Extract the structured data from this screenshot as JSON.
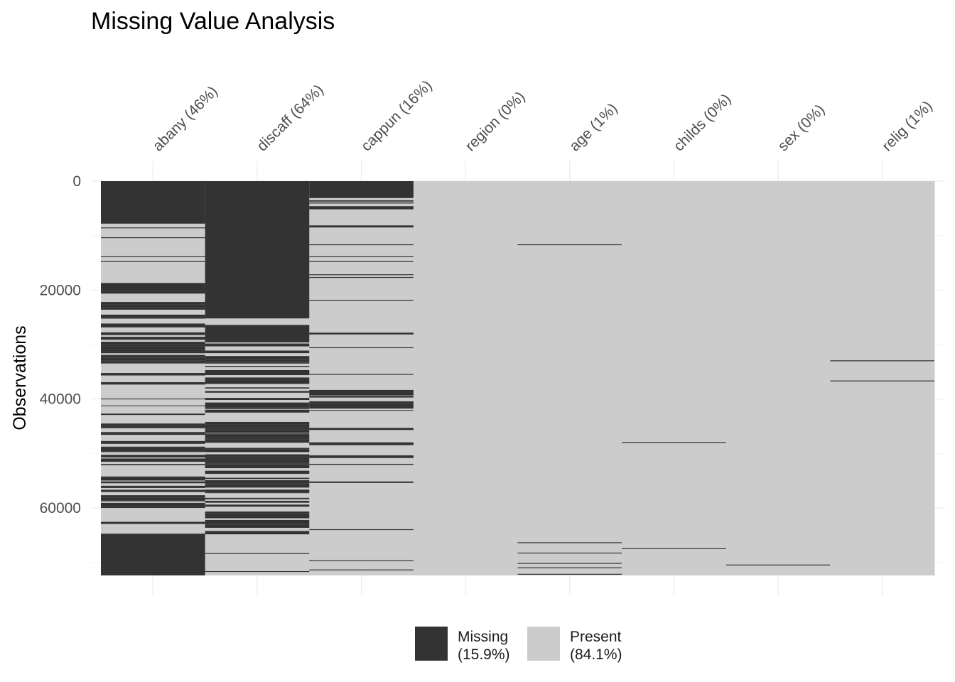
{
  "chart_data": {
    "type": "heatmap",
    "title": "Missing Value Analysis",
    "ylabel": "Observations",
    "xlabel": "",
    "ylim": [
      0,
      72390
    ],
    "y_reversed": true,
    "y_ticks": [
      0,
      20000,
      40000,
      60000
    ],
    "n_observations": 72390,
    "colors": {
      "missing": "#333333",
      "present": "#cccccc"
    },
    "legend": {
      "placement": "bottom",
      "items": [
        {
          "key": "missing",
          "label_line1": "Missing",
          "label_line2": "(15.9%)",
          "color": "#333333"
        },
        {
          "key": "present",
          "label_line1": "Present",
          "label_line2": "(84.1%)",
          "color": "#cccccc"
        }
      ]
    },
    "columns": [
      {
        "name": "abany",
        "label": "abany (46%)",
        "pct_missing": 46,
        "missing_blocks": [
          [
            0,
            7800
          ],
          [
            18700,
            20200
          ],
          [
            64800,
            72390
          ]
        ],
        "missing_dense": [
          [
            20200,
            64800,
            0.42
          ]
        ],
        "missing_lines": [
          8500,
          10300,
          13800,
          14700
        ]
      },
      {
        "name": "discaff",
        "label": "discaff (64%)",
        "pct_missing": 64,
        "missing_blocks": [
          [
            0,
            25200
          ],
          [
            26400,
            29600
          ]
        ],
        "missing_dense": [
          [
            29600,
            64900,
            0.62
          ]
        ],
        "missing_lines": [
          68300,
          71600
        ]
      },
      {
        "name": "cappun",
        "label": "cappun (16%)",
        "pct_missing": 16,
        "missing_blocks": [
          [
            0,
            3100
          ]
        ],
        "missing_dense": [
          [
            3100,
            8500,
            0.22
          ],
          [
            27400,
            29200,
            0.25
          ],
          [
            38000,
            56800,
            0.16
          ]
        ],
        "missing_lines": [
          11600,
          13800,
          14700,
          17100,
          17600,
          21800,
          30500,
          35400,
          63900,
          69600,
          71300
        ]
      },
      {
        "name": "region",
        "label": "region (0%)",
        "pct_missing": 0,
        "missing_blocks": [],
        "missing_dense": [],
        "missing_lines": []
      },
      {
        "name": "age",
        "label": "age (1%)",
        "pct_missing": 1,
        "missing_blocks": [],
        "missing_dense": [],
        "missing_lines": [
          11600,
          66300,
          68200,
          70100,
          70900,
          72100
        ]
      },
      {
        "name": "childs",
        "label": "childs (0%)",
        "pct_missing": 0,
        "missing_blocks": [],
        "missing_dense": [],
        "missing_lines": [
          47900,
          67400
        ]
      },
      {
        "name": "sex",
        "label": "sex (0%)",
        "pct_missing": 0,
        "missing_blocks": [],
        "missing_dense": [],
        "missing_lines": [
          70400
        ]
      },
      {
        "name": "relig",
        "label": "relig (1%)",
        "pct_missing": 1,
        "missing_blocks": [],
        "missing_dense": [],
        "missing_lines": [
          32900,
          36600
        ]
      }
    ]
  }
}
